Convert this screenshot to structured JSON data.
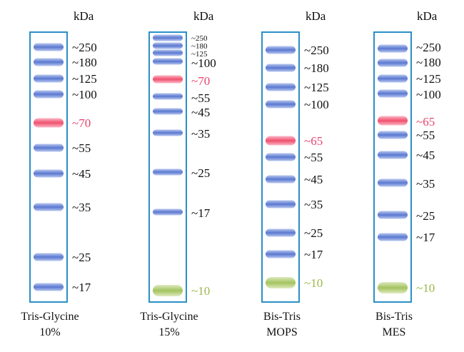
{
  "colors": {
    "frame": "#2b8fc7",
    "band_blue": "#5a78d0",
    "band_red": "#f0506e",
    "band_green": "#9fc25a",
    "label_red": "#e8456e",
    "label_green": "#9ab84a"
  },
  "unit": "kDa",
  "ladders": [
    {
      "caption": [
        "Tris-Glycine",
        "10%"
      ],
      "bands": [
        {
          "label": "~250",
          "color": "blue"
        },
        {
          "label": "~180",
          "color": "blue"
        },
        {
          "label": "~125",
          "color": "blue"
        },
        {
          "label": "~100",
          "color": "blue"
        },
        {
          "label": "~70",
          "color": "red"
        },
        {
          "label": "~55",
          "color": "blue"
        },
        {
          "label": "~45",
          "color": "blue"
        },
        {
          "label": "~35",
          "color": "blue"
        },
        {
          "label": "~25",
          "color": "blue"
        },
        {
          "label": "~17",
          "color": "blue"
        }
      ]
    },
    {
      "caption": [
        "Tris-Glycine",
        "15%"
      ],
      "bands": [
        {
          "label": "~250",
          "color": "blue"
        },
        {
          "label": "~180",
          "color": "blue"
        },
        {
          "label": "~125",
          "color": "blue"
        },
        {
          "label": "~100",
          "color": "blue"
        },
        {
          "label": "~70",
          "color": "red"
        },
        {
          "label": "~55",
          "color": "blue"
        },
        {
          "label": "~45",
          "color": "blue"
        },
        {
          "label": "~35",
          "color": "blue"
        },
        {
          "label": "~25",
          "color": "blue"
        },
        {
          "label": "~17",
          "color": "blue"
        },
        {
          "label": "~10",
          "color": "green"
        }
      ]
    },
    {
      "caption": [
        "Bis-Tris",
        "MOPS"
      ],
      "bands": [
        {
          "label": "~250",
          "color": "blue"
        },
        {
          "label": "~180",
          "color": "blue"
        },
        {
          "label": "~125",
          "color": "blue"
        },
        {
          "label": "~100",
          "color": "blue"
        },
        {
          "label": "~65",
          "color": "red"
        },
        {
          "label": "~55",
          "color": "blue"
        },
        {
          "label": "~45",
          "color": "blue"
        },
        {
          "label": "~35",
          "color": "blue"
        },
        {
          "label": "~25",
          "color": "blue"
        },
        {
          "label": "~17",
          "color": "blue"
        },
        {
          "label": "~10",
          "color": "green"
        }
      ]
    },
    {
      "caption": [
        "Bis-Tris",
        "MES"
      ],
      "bands": [
        {
          "label": "~250",
          "color": "blue"
        },
        {
          "label": "~180",
          "color": "blue"
        },
        {
          "label": "~125",
          "color": "blue"
        },
        {
          "label": "~100",
          "color": "blue"
        },
        {
          "label": "~65",
          "color": "red"
        },
        {
          "label": "~55",
          "color": "blue"
        },
        {
          "label": "~45",
          "color": "blue"
        },
        {
          "label": "~35",
          "color": "blue"
        },
        {
          "label": "~25",
          "color": "blue"
        },
        {
          "label": "~17",
          "color": "blue"
        },
        {
          "label": "~10",
          "color": "green"
        }
      ]
    }
  ]
}
